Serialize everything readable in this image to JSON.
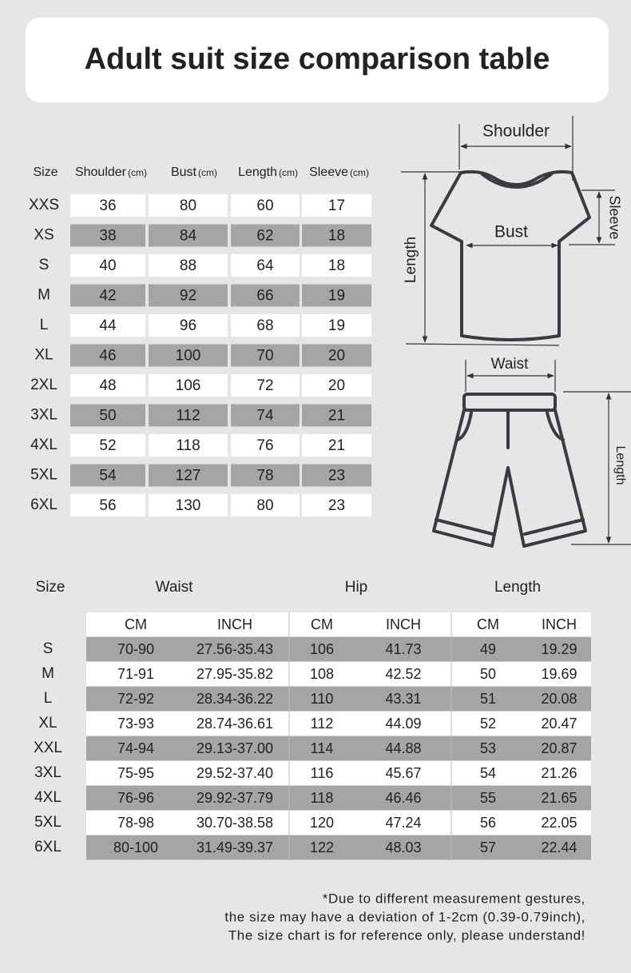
{
  "title": "Adult suit size comparison table",
  "top_table": {
    "unit": "(cm)",
    "headers": [
      "Size",
      "Shoulder",
      "Bust",
      "Length",
      "Sleeve"
    ],
    "rows": [
      [
        "XXS",
        36,
        80,
        60,
        17
      ],
      [
        "XS",
        38,
        84,
        62,
        18
      ],
      [
        "S",
        40,
        88,
        64,
        18
      ],
      [
        "M",
        42,
        92,
        66,
        19
      ],
      [
        "L",
        44,
        96,
        68,
        19
      ],
      [
        "XL",
        46,
        100,
        70,
        20
      ],
      [
        "2XL",
        48,
        106,
        72,
        20
      ],
      [
        "3XL",
        50,
        112,
        74,
        21
      ],
      [
        "4XL",
        52,
        118,
        76,
        21
      ],
      [
        "5XL",
        54,
        127,
        78,
        23
      ],
      [
        "6XL",
        56,
        130,
        80,
        23
      ]
    ]
  },
  "diagram": {
    "shirt": {
      "shoulder": "Shoulder",
      "bust": "Bust",
      "length": "Length",
      "sleeve": "Sleeve"
    },
    "shorts": {
      "waist": "Waist",
      "length": "Length"
    }
  },
  "bottom_table": {
    "groups": [
      "Size",
      "Waist",
      "Hip",
      "Length"
    ],
    "subheaders": [
      "CM",
      "INCH",
      "CM",
      "INCH",
      "CM",
      "INCH"
    ],
    "rows": [
      [
        "S",
        "70-90",
        "27.56-35.43",
        106,
        41.73,
        49,
        19.29
      ],
      [
        "M",
        "71-91",
        "27.95-35.82",
        108,
        42.52,
        50,
        19.69
      ],
      [
        "L",
        "72-92",
        "28.34-36.22",
        110,
        43.31,
        51,
        20.08
      ],
      [
        "XL",
        "73-93",
        "28.74-36.61",
        112,
        44.09,
        52,
        20.47
      ],
      [
        "XXL",
        "74-94",
        "29.13-37.00",
        114,
        44.88,
        53,
        20.87
      ],
      [
        "3XL",
        "75-95",
        "29.52-37.40",
        116,
        45.67,
        54,
        21.26
      ],
      [
        "4XL",
        "76-96",
        "29.92-37.79",
        118,
        46.46,
        55,
        21.65
      ],
      [
        "5XL",
        "78-98",
        "30.70-38.58",
        120,
        47.24,
        56,
        22.05
      ],
      [
        "6XL",
        "80-100",
        "31.49-39.37",
        122,
        48.03,
        57,
        22.44
      ]
    ]
  },
  "footnote": [
    "*Due to different measurement gestures,",
    "the size may have a deviation of 1-2cm (0.39-0.79inch),",
    "The size chart is for reference only, please understand!"
  ]
}
